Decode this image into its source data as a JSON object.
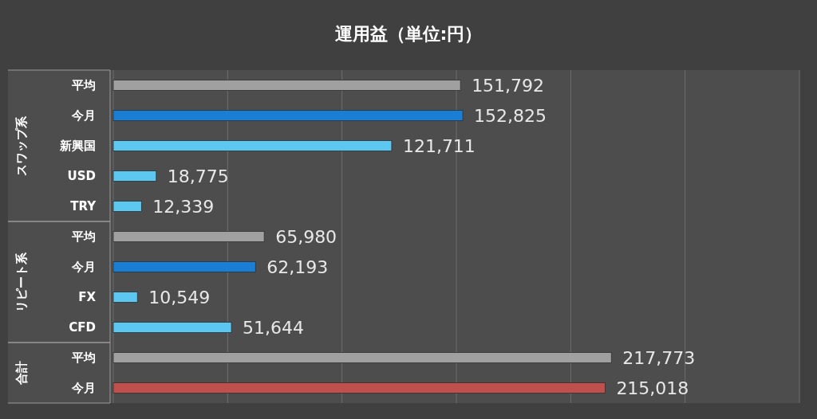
{
  "chart_data": {
    "type": "bar",
    "orientation": "horizontal",
    "title": "運用益（単位:円）",
    "categories": [
      "平均",
      "今月",
      "新興国",
      "USD",
      "TRY",
      "平均",
      "今月",
      "FX",
      "CFD",
      "平均",
      "今月"
    ],
    "values": [
      151792,
      152825,
      121711,
      18775,
      12339,
      65980,
      62193,
      10549,
      51644,
      217773,
      215018
    ],
    "colors": [
      "#a0a0a0",
      "#1a7fd4",
      "#5cc8f2",
      "#5cc8f2",
      "#5cc8f2",
      "#a0a0a0",
      "#1a7fd4",
      "#5cc8f2",
      "#5cc8f2",
      "#a0a0a0",
      "#c0504d"
    ],
    "value_labels": [
      "151,792",
      "152,825",
      "121,711",
      "18,775",
      "12,339",
      "65,980",
      "62,193",
      "10,549",
      "51,644",
      "217,773",
      "215,018"
    ],
    "xlim": [
      0,
      300000
    ],
    "xticks": [
      {
        "value": 0,
        "label": null
      },
      {
        "value": 50000,
        "label": null
      },
      {
        "value": 100000,
        "label": null
      },
      {
        "value": 150000,
        "label": null
      },
      {
        "value": 200000,
        "label": null
      },
      {
        "value": 250000,
        "label": null
      },
      {
        "value": 300000,
        "label": null
      }
    ],
    "tick_labels": "y",
    "grid": "x",
    "annotations": [
      "スワップ系",
      "リピート系",
      "合計"
    ]
  }
}
